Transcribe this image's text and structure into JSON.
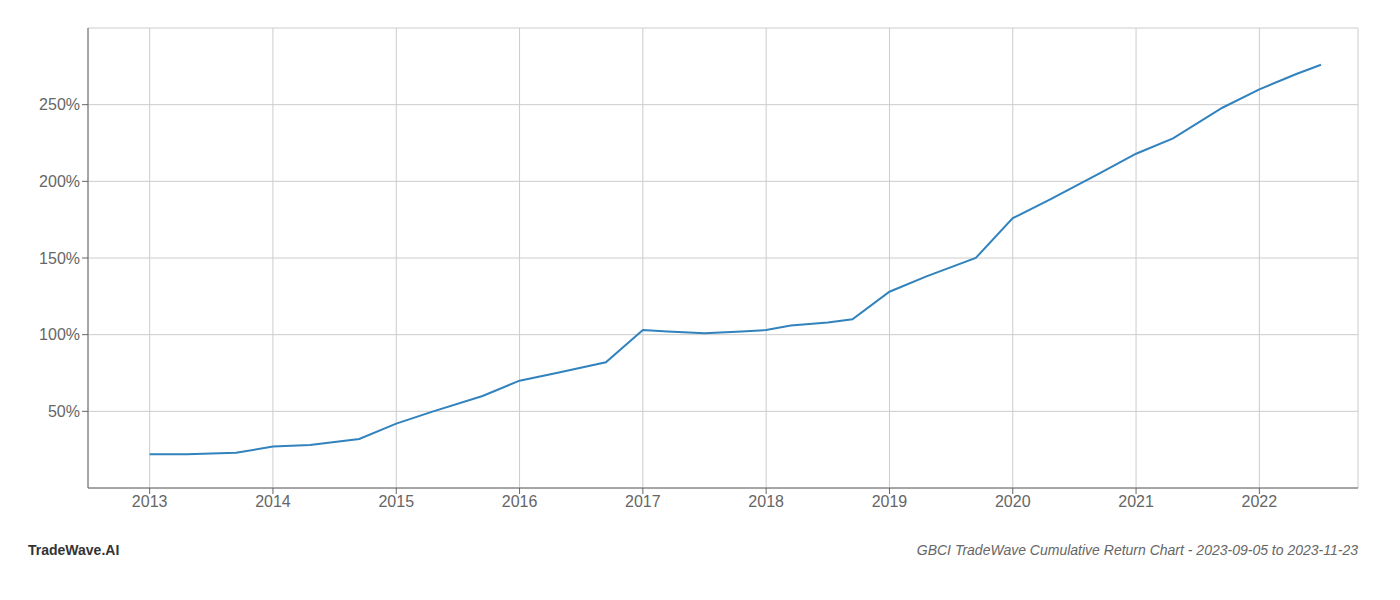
{
  "chart_data": {
    "type": "line",
    "title": "GBCI TradeWave Cumulative Return Chart - 2023-09-05 to 2023-11-23",
    "annotations": [
      "TradeWave.AI"
    ],
    "x": [
      2013.0,
      2013.3,
      2013.7,
      2014.0,
      2014.3,
      2014.7,
      2015.0,
      2015.3,
      2015.7,
      2016.0,
      2016.3,
      2016.7,
      2017.0,
      2017.2,
      2017.5,
      2017.8,
      2018.0,
      2018.2,
      2018.5,
      2018.7,
      2019.0,
      2019.3,
      2019.7,
      2020.0,
      2020.3,
      2020.7,
      2021.0,
      2021.3,
      2021.7,
      2022.0,
      2022.3,
      2022.5
    ],
    "values": [
      22,
      22,
      23,
      27,
      28,
      32,
      42,
      50,
      60,
      70,
      75,
      82,
      103,
      102,
      101,
      102,
      103,
      106,
      108,
      110,
      128,
      138,
      150,
      176,
      188,
      205,
      218,
      228,
      248,
      260,
      270,
      276
    ],
    "xlim": [
      2012.5,
      2022.8
    ],
    "xticks": [
      2013,
      2014,
      2015,
      2016,
      2017,
      2018,
      2019,
      2020,
      2021,
      2022
    ],
    "ylim": [
      0,
      300
    ],
    "yticks": [
      {
        "value": 50,
        "label": "50%"
      },
      {
        "value": 100,
        "label": "100%"
      },
      {
        "value": 150,
        "label": "150%"
      },
      {
        "value": 200,
        "label": "200%"
      },
      {
        "value": 250,
        "label": "250%"
      }
    ],
    "grid": true
  }
}
